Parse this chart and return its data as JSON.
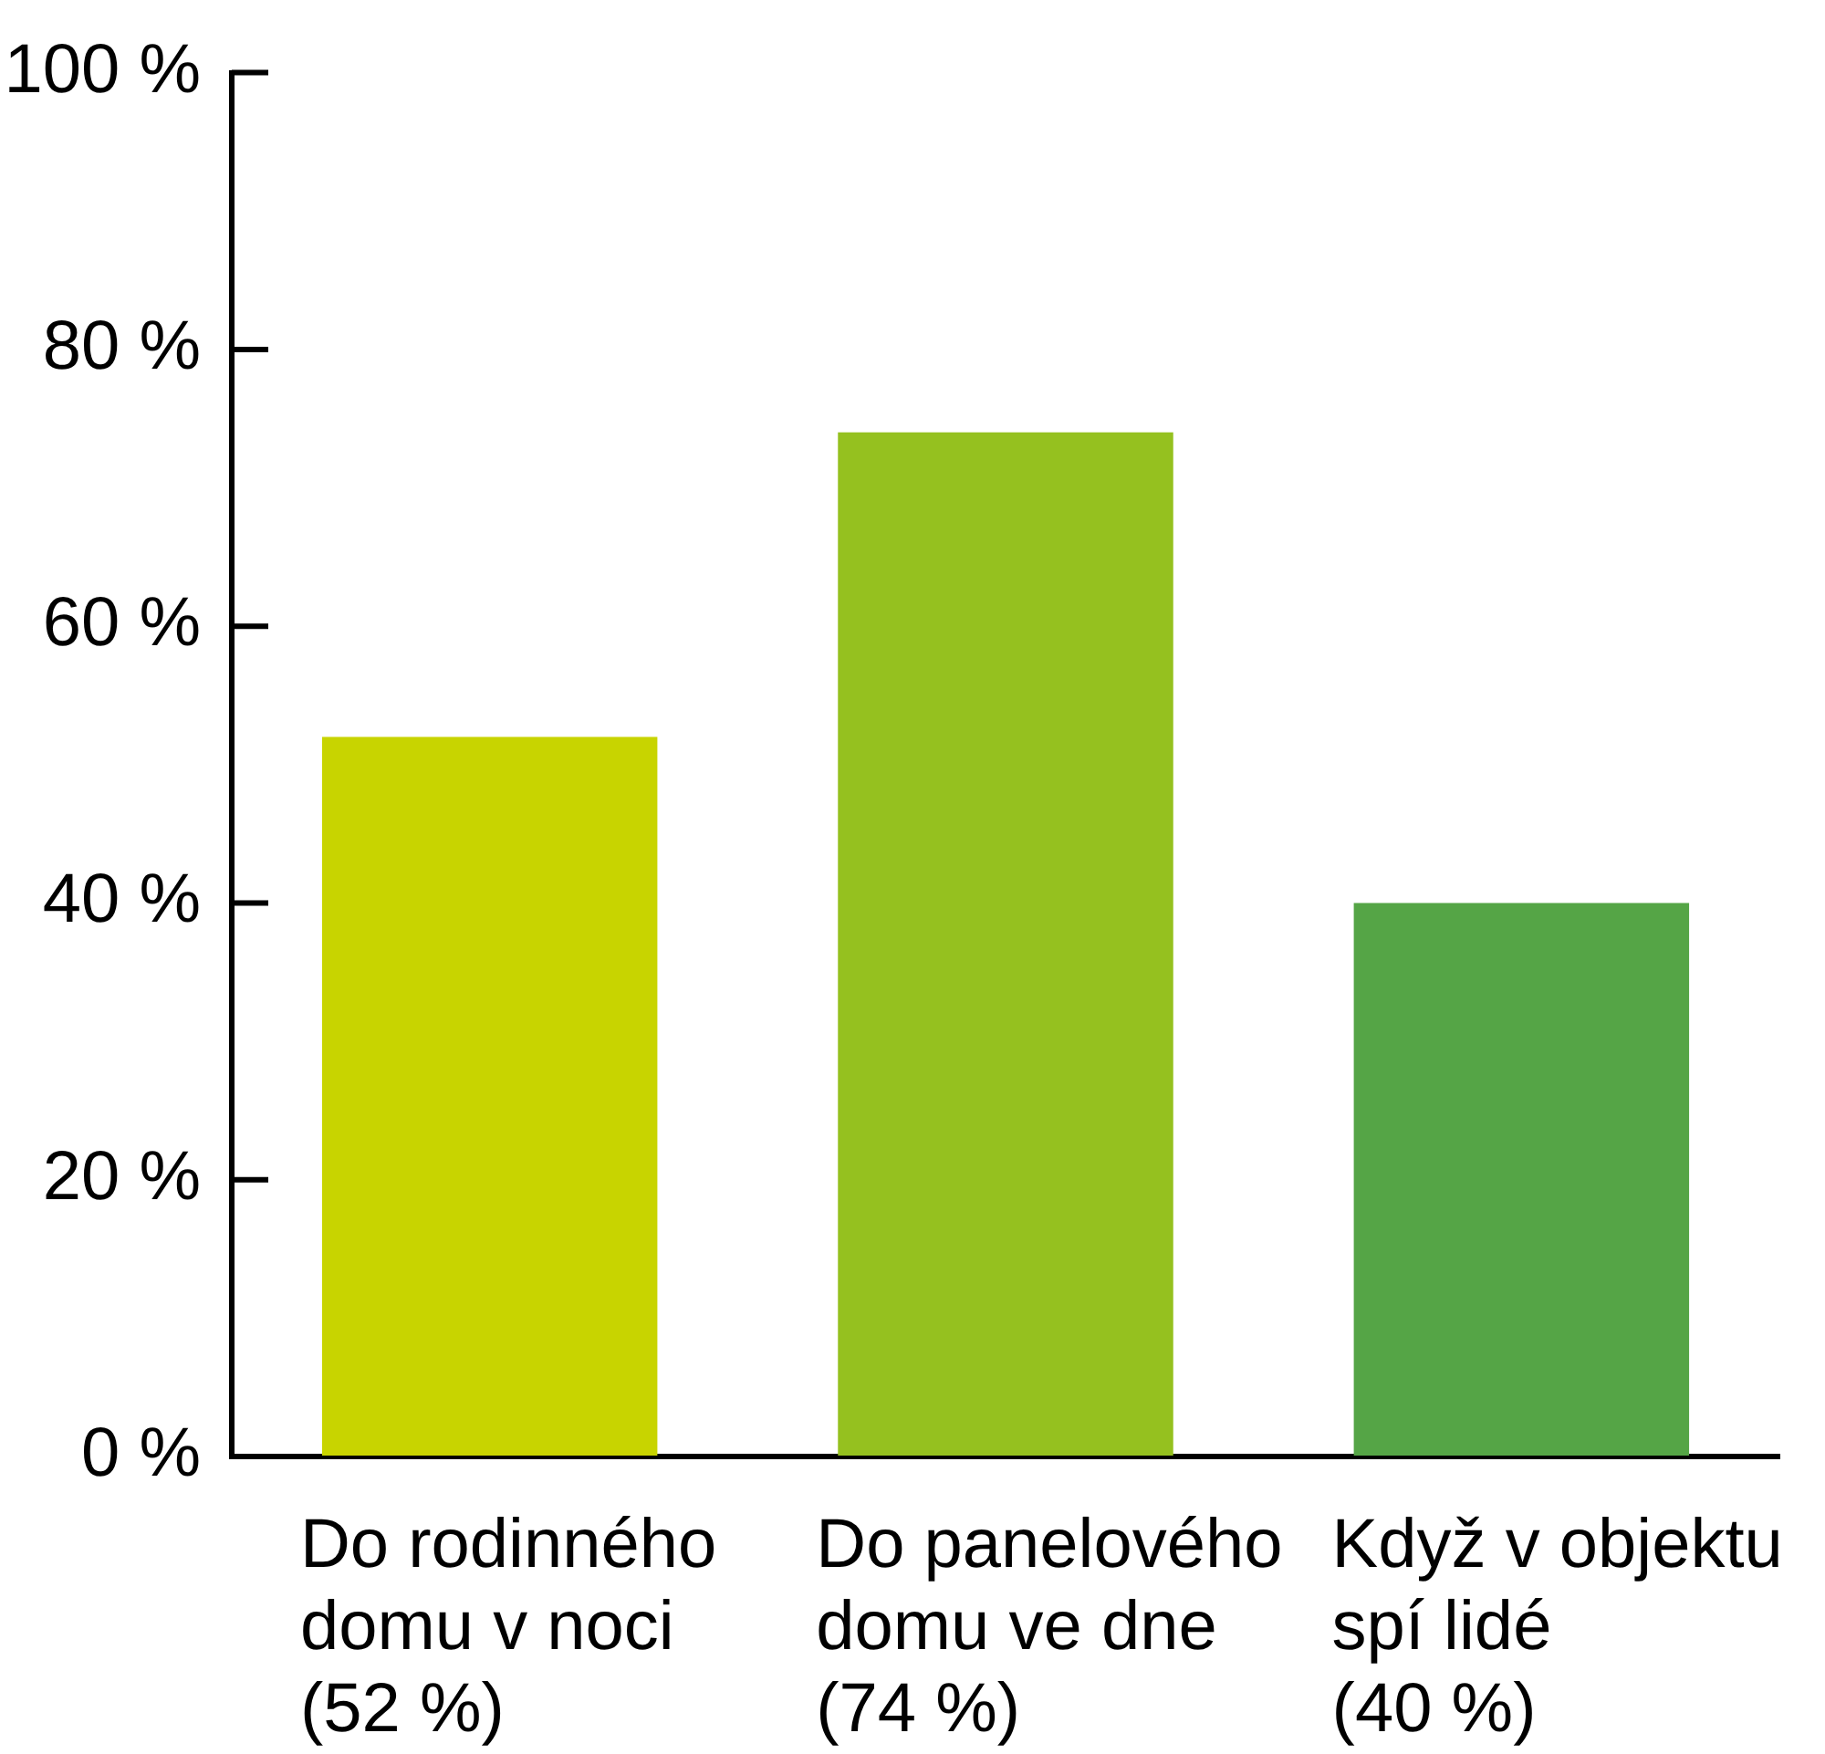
{
  "chart_data": {
    "type": "bar",
    "categories": [
      "Do rodinného\ndomu v noci\n(52 %)",
      "Do panelového\ndomu ve dne\n(74 %)",
      "Když v objektu\nspí lidé\n(40 %)"
    ],
    "values": [
      52,
      74,
      40
    ],
    "colors": [
      "#c8d400",
      "#95c11f",
      "#55a546"
    ],
    "ylim": [
      0,
      100
    ],
    "yticks": [
      {
        "value": 0,
        "label": "0 %"
      },
      {
        "value": 20,
        "label": "20 %"
      },
      {
        "value": 40,
        "label": "40 %"
      },
      {
        "value": 60,
        "label": "60 %"
      },
      {
        "value": 80,
        "label": "80 %"
      },
      {
        "value": 100,
        "label": "100 %"
      }
    ],
    "grid": false
  }
}
